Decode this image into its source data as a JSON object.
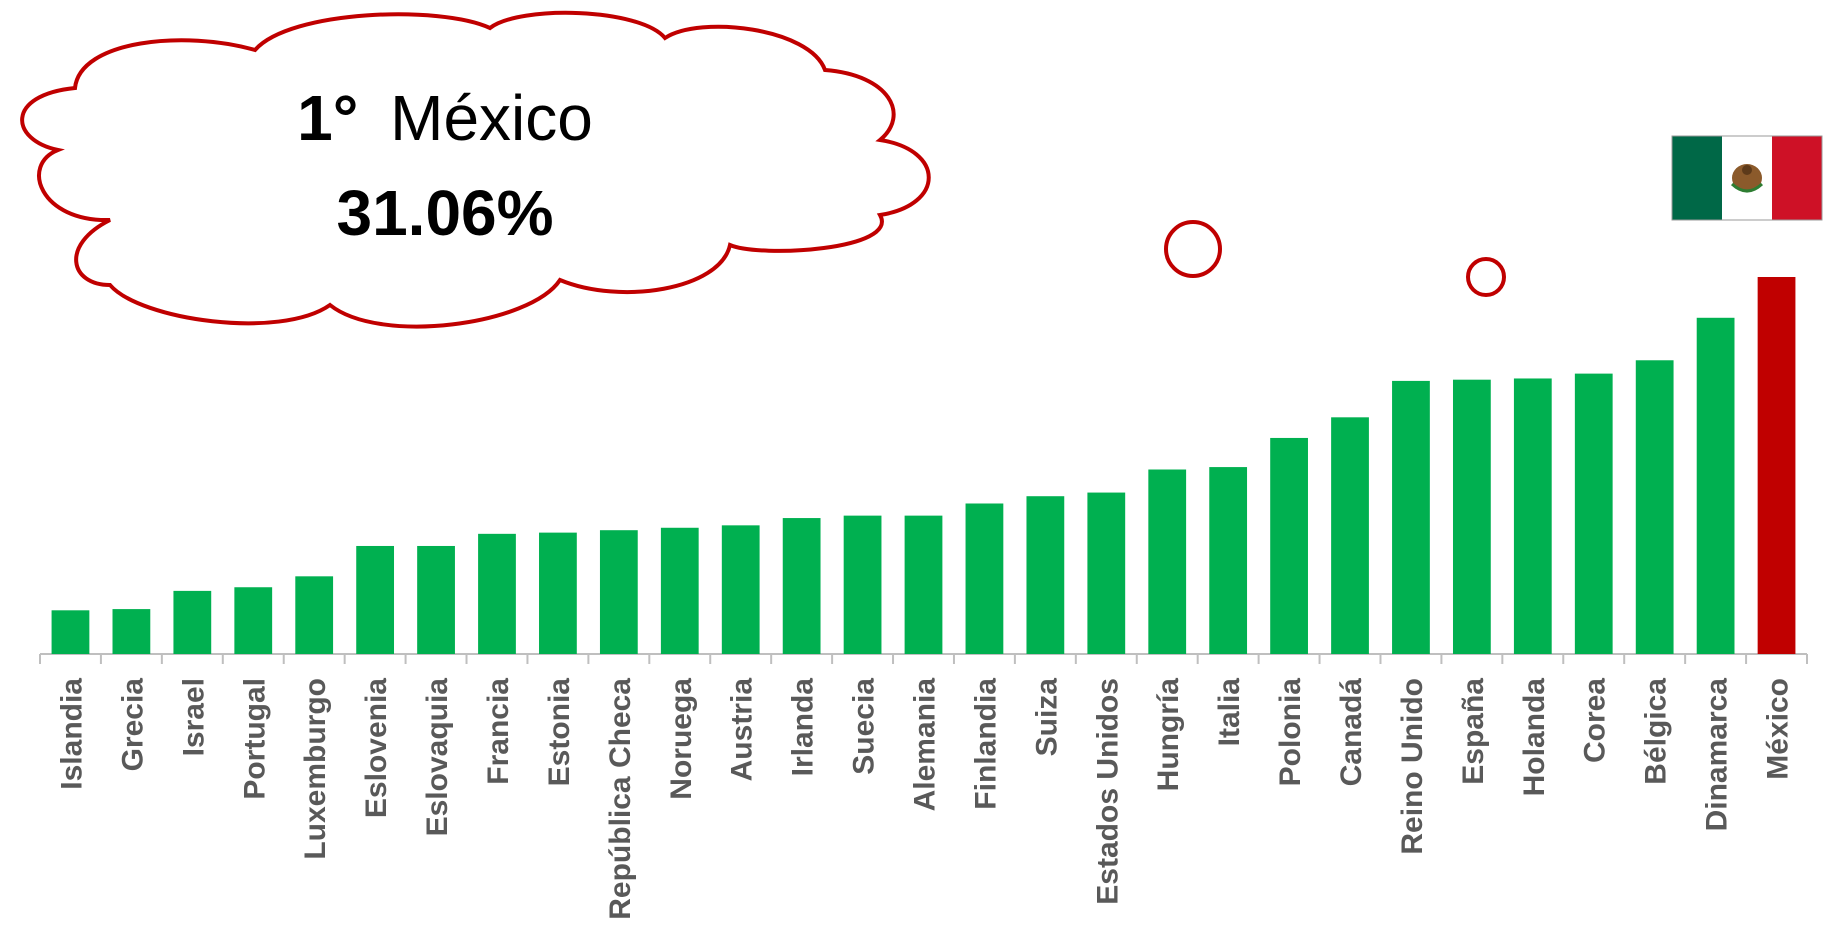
{
  "callout": {
    "rank": "1°",
    "country": "México",
    "value_text": "31.06%"
  },
  "flag": {
    "country": "México",
    "colors": {
      "green": "#006847",
      "white": "#ffffff",
      "red": "#ce1126"
    }
  },
  "colors": {
    "bar": "#00b050",
    "highlight": "#c00000",
    "callout_border": "#c00000",
    "label": "#595959",
    "axis": "#bfbfbf"
  },
  "chart_data": {
    "type": "bar",
    "categories": [
      "Islandia",
      "Grecia",
      "Israel",
      "Portugal",
      "Luxemburgo",
      "Eslovenia",
      "Eslovaquia",
      "Francia",
      "Estonia",
      "República Checa",
      "Noruega",
      "Austria",
      "Irlanda",
      "Suecia",
      "Alemania",
      "Finlandia",
      "Suiza",
      "Estados Unidos",
      "Hungría",
      "Italia",
      "Polonia",
      "Canadá",
      "Reino Unido",
      "España",
      "Holanda",
      "Corea",
      "Bélgica",
      "Dinamarca",
      "México"
    ],
    "values": [
      3.6,
      3.7,
      5.2,
      5.5,
      6.4,
      8.9,
      8.9,
      9.9,
      10.0,
      10.2,
      10.4,
      10.6,
      11.2,
      11.4,
      11.4,
      12.4,
      13.0,
      13.3,
      15.2,
      15.4,
      17.8,
      19.5,
      22.5,
      22.6,
      22.7,
      23.1,
      24.2,
      27.7,
      31.06
    ],
    "highlight": "México",
    "title": "",
    "xlabel": "",
    "ylabel": "",
    "ylim": [
      0,
      31.06
    ],
    "grid": false,
    "legend": "none"
  }
}
